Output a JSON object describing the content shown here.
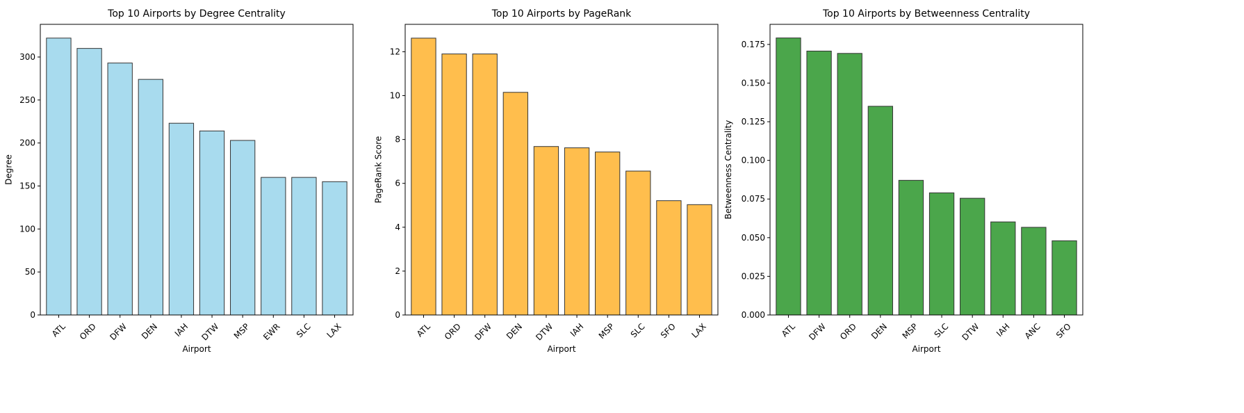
{
  "chart_data": [
    {
      "type": "bar",
      "title": "Top 10 Airports by Degree Centrality",
      "xlabel": "Airport",
      "ylabel": "Degree",
      "categories": [
        "ATL",
        "ORD",
        "DFW",
        "DEN",
        "IAH",
        "DTW",
        "MSP",
        "EWR",
        "SLC",
        "LAX"
      ],
      "values": [
        322,
        310,
        293,
        274,
        223,
        214,
        203,
        160,
        160,
        155
      ],
      "ylim": [
        0,
        338
      ],
      "yticks": [
        0,
        50,
        100,
        150,
        200,
        250,
        300
      ],
      "ytick_labels": [
        "0",
        "50",
        "100",
        "150",
        "200",
        "250",
        "300"
      ],
      "color": "#a8dbee",
      "grid": false
    },
    {
      "type": "bar",
      "title": "Top 10 Airports by PageRank",
      "xlabel": "Airport",
      "ylabel": "PageRank Score",
      "categories": [
        "ATL",
        "ORD",
        "DFW",
        "DEN",
        "DTW",
        "IAH",
        "MSP",
        "SLC",
        "SFO",
        "LAX"
      ],
      "values": [
        12.62,
        11.9,
        11.9,
        10.15,
        7.68,
        7.62,
        7.43,
        6.56,
        5.21,
        5.03
      ],
      "ylim": [
        0,
        13.25
      ],
      "yticks": [
        0,
        2,
        4,
        6,
        8,
        10,
        12
      ],
      "ytick_labels": [
        "0",
        "2",
        "4",
        "6",
        "8",
        "10",
        "12"
      ],
      "color": "#ffbe4d",
      "grid": false
    },
    {
      "type": "bar",
      "title": "Top 10 Airports by Betweenness Centrality",
      "xlabel": "Airport",
      "ylabel": "Betweenness Centrality",
      "categories": [
        "ATL",
        "DFW",
        "ORD",
        "DEN",
        "MSP",
        "SLC",
        "DTW",
        "IAH",
        "ANC",
        "SFO"
      ],
      "values": [
        0.1792,
        0.1707,
        0.1692,
        0.135,
        0.0871,
        0.079,
        0.0755,
        0.0602,
        0.0567,
        0.048
      ],
      "ylim": [
        0,
        0.188
      ],
      "yticks": [
        0,
        0.025,
        0.05,
        0.075,
        0.1,
        0.125,
        0.15,
        0.175
      ],
      "ytick_labels": [
        "0.000",
        "0.025",
        "0.050",
        "0.075",
        "0.100",
        "0.125",
        "0.150",
        "0.175"
      ],
      "color": "#4ba64b",
      "grid": false
    }
  ]
}
